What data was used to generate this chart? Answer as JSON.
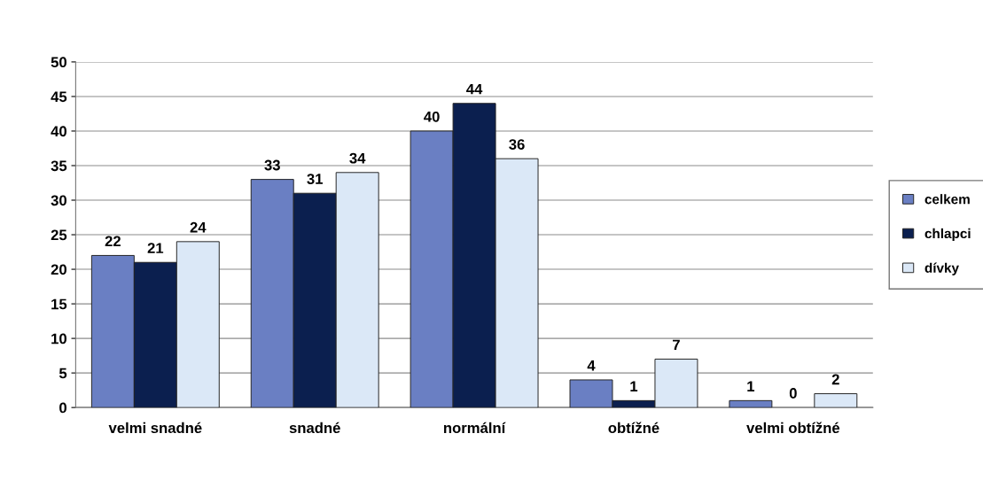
{
  "chart_data": {
    "type": "bar",
    "categories": [
      "velmi snadné",
      "snadné",
      "normální",
      "obtížné",
      "velmi obtížné"
    ],
    "series": [
      {
        "name": "celkem",
        "color": "#6a7fc3",
        "values": [
          22,
          33,
          40,
          4,
          1
        ]
      },
      {
        "name": "chlapci",
        "color": "#0b1f4f",
        "values": [
          21,
          31,
          44,
          1,
          0
        ]
      },
      {
        "name": "dívky",
        "color": "#dbe8f7",
        "values": [
          24,
          34,
          36,
          7,
          2
        ]
      }
    ],
    "ylim": [
      0,
      50
    ],
    "yticks": [
      0,
      5,
      10,
      15,
      20,
      25,
      30,
      35,
      40,
      45,
      50
    ],
    "grid": "y",
    "legend": "right",
    "data_labels": true
  }
}
